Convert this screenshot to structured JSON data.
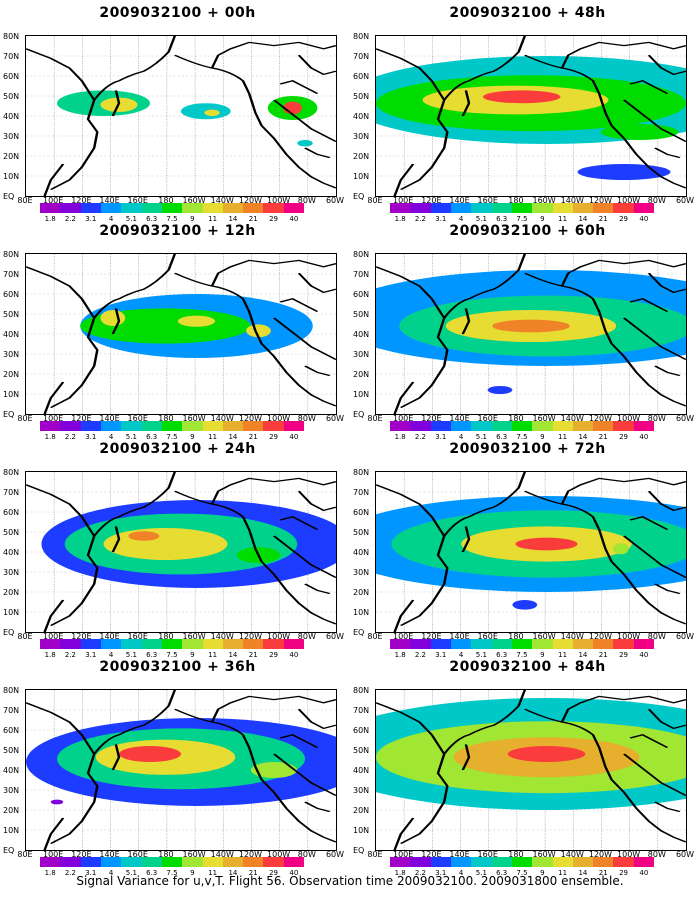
{
  "panels": [
    {
      "title": "2009032100 + 00h",
      "blobs": [
        [
          25,
          42,
          30,
          16,
          0.35
        ],
        [
          30,
          43,
          12,
          9,
          0.55
        ],
        [
          58,
          47,
          16,
          10,
          0.3
        ],
        [
          60,
          48,
          5,
          4,
          0.55
        ],
        [
          86,
          45,
          16,
          15,
          0.4
        ],
        [
          86,
          45,
          6,
          8,
          0.7
        ],
        [
          90,
          67,
          5,
          4,
          0.25
        ]
      ]
    },
    {
      "title": "2009032100 + 48h",
      "blobs": [
        [
          55,
          40,
          130,
          55,
          0.25
        ],
        [
          50,
          42,
          100,
          35,
          0.4
        ],
        [
          45,
          40,
          60,
          18,
          0.55
        ],
        [
          47,
          38,
          25,
          8,
          0.7
        ],
        [
          85,
          60,
          25,
          10,
          0.4
        ],
        [
          80,
          85,
          30,
          10,
          0.15
        ]
      ]
    },
    {
      "title": "2009032100 + 12h",
      "blobs": [
        [
          55,
          45,
          75,
          40,
          0.2
        ],
        [
          45,
          45,
          55,
          22,
          0.4
        ],
        [
          28,
          40,
          8,
          10,
          0.55
        ],
        [
          55,
          42,
          12,
          7,
          0.5
        ],
        [
          75,
          48,
          8,
          8,
          0.55
        ]
      ]
    },
    {
      "title": "2009032100 + 60h",
      "blobs": [
        [
          55,
          40,
          140,
          60,
          0.2
        ],
        [
          55,
          45,
          95,
          38,
          0.35
        ],
        [
          50,
          45,
          55,
          20,
          0.5
        ],
        [
          50,
          45,
          25,
          8,
          0.65
        ],
        [
          40,
          85,
          8,
          5,
          0.15
        ]
      ]
    },
    {
      "title": "2009032100 + 24h",
      "blobs": [
        [
          55,
          45,
          100,
          55,
          0.18
        ],
        [
          50,
          45,
          75,
          38,
          0.35
        ],
        [
          45,
          45,
          40,
          20,
          0.55
        ],
        [
          38,
          40,
          10,
          6,
          0.65
        ],
        [
          75,
          52,
          14,
          10,
          0.4
        ]
      ]
    },
    {
      "title": "2009032100 + 72h",
      "blobs": [
        [
          55,
          45,
          140,
          60,
          0.2
        ],
        [
          55,
          45,
          100,
          42,
          0.35
        ],
        [
          55,
          45,
          55,
          22,
          0.55
        ],
        [
          55,
          45,
          20,
          8,
          0.68
        ],
        [
          79,
          48,
          5,
          7,
          0.45
        ],
        [
          48,
          83,
          8,
          6,
          0.15
        ]
      ]
    },
    {
      "title": "2009032100 + 36h",
      "blobs": [
        [
          55,
          45,
          110,
          55,
          0.18
        ],
        [
          50,
          43,
          80,
          38,
          0.35
        ],
        [
          45,
          42,
          45,
          22,
          0.55
        ],
        [
          40,
          40,
          20,
          10,
          0.68
        ],
        [
          80,
          50,
          15,
          10,
          0.45
        ],
        [
          10,
          70,
          4,
          3,
          0.1
        ]
      ]
    },
    {
      "title": "2009032100 + 84h",
      "blobs": [
        [
          55,
          40,
          150,
          70,
          0.3
        ],
        [
          55,
          42,
          110,
          45,
          0.45
        ],
        [
          55,
          42,
          60,
          25,
          0.58
        ],
        [
          55,
          40,
          25,
          10,
          0.7
        ],
        [
          82,
          52,
          8,
          6,
          0.45
        ]
      ]
    }
  ],
  "y_labels": [
    "80N",
    "70N",
    "60N",
    "50N",
    "40N",
    "30N",
    "20N",
    "10N",
    "EQ"
  ],
  "x_labels": [
    "80E",
    "100E",
    "120E",
    "140E",
    "160E",
    "180",
    "160W",
    "140W",
    "120W",
    "100W",
    "80W",
    "60W"
  ],
  "colorbar": {
    "labels": [
      "1.8",
      "2.2",
      "3.1",
      "4",
      "5.1",
      "6.3",
      "7.5",
      "9",
      "11",
      "14",
      "21",
      "29",
      "40"
    ],
    "colors": [
      "#a000c8",
      "#8200dc",
      "#1e3cff",
      "#0096ff",
      "#00c8c8",
      "#00d28c",
      "#00dc00",
      "#a0e632",
      "#e6dc32",
      "#e6af2d",
      "#f08228",
      "#fa3c3c",
      "#f00082"
    ]
  },
  "caption": "Signal Variance for u,v,T. Flight 56. Observation time 2009032100. 2009031800 ensemble."
}
